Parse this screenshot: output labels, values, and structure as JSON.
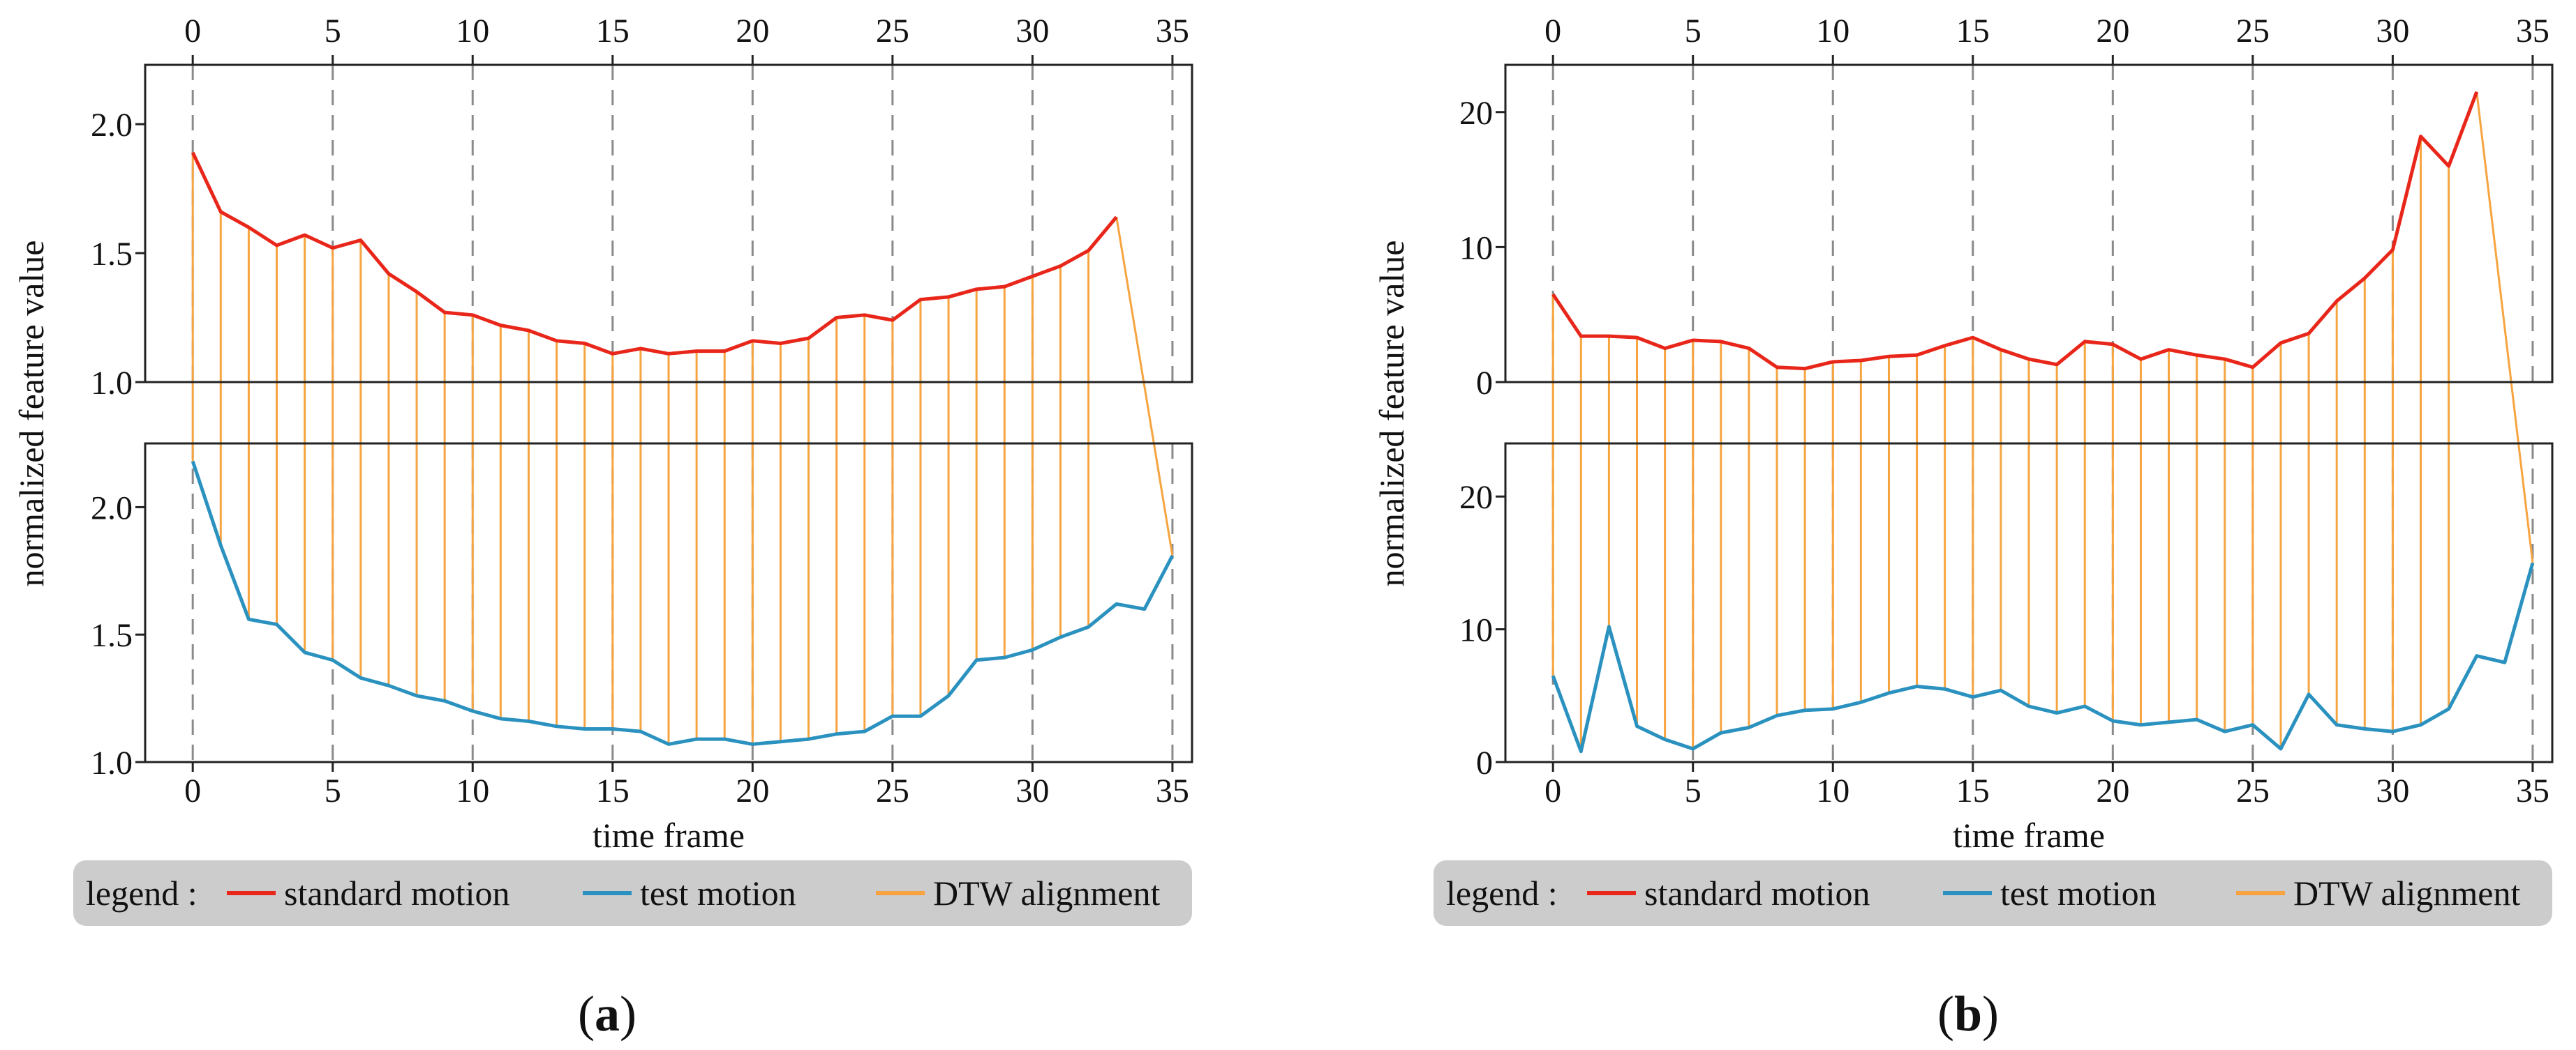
{
  "chart_data": [
    {
      "type": "line",
      "caption": "a",
      "xlabel": "time frame",
      "ylabel": "normalized feature value",
      "xticks": [
        0,
        5,
        10,
        15,
        20,
        25,
        30,
        35
      ],
      "xlim": [
        -1.7,
        35.7
      ],
      "top": {
        "ylim": [
          1.0,
          2.23
        ],
        "yticks": [
          1.0,
          1.5,
          2.0
        ],
        "tick_labels": [
          "1.0",
          "1.5",
          "2.0"
        ],
        "series_name": "standard motion",
        "x": [
          0,
          1,
          2,
          3,
          4,
          5,
          6,
          7,
          8,
          9,
          10,
          11,
          12,
          13,
          14,
          15,
          16,
          17,
          18,
          19,
          20,
          21,
          22,
          23,
          24,
          25,
          26,
          27,
          28,
          29,
          30,
          31,
          32,
          33
        ],
        "values": [
          1.89,
          1.66,
          1.6,
          1.53,
          1.57,
          1.52,
          1.55,
          1.42,
          1.35,
          1.27,
          1.26,
          1.22,
          1.2,
          1.16,
          1.15,
          1.11,
          1.13,
          1.11,
          1.12,
          1.12,
          1.16,
          1.15,
          1.17,
          1.25,
          1.26,
          1.24,
          1.32,
          1.33,
          1.36,
          1.37,
          1.41,
          1.45,
          1.51,
          1.64
        ]
      },
      "bottom": {
        "ylim": [
          1.0,
          2.25
        ],
        "yticks": [
          1.0,
          1.5,
          2.0
        ],
        "tick_labels": [
          "1.0",
          "1.5",
          "2.0"
        ],
        "series_name": "test motion",
        "x": [
          0,
          1,
          2,
          3,
          4,
          5,
          6,
          7,
          8,
          9,
          10,
          11,
          12,
          13,
          14,
          15,
          16,
          17,
          18,
          19,
          20,
          21,
          22,
          23,
          24,
          25,
          26,
          27,
          28,
          29,
          30,
          31,
          32,
          33,
          34,
          35
        ],
        "values": [
          2.18,
          1.85,
          1.56,
          1.54,
          1.43,
          1.4,
          1.33,
          1.3,
          1.26,
          1.24,
          1.2,
          1.17,
          1.16,
          1.14,
          1.13,
          1.13,
          1.12,
          1.07,
          1.09,
          1.09,
          1.07,
          1.08,
          1.09,
          1.11,
          1.12,
          1.18,
          1.18,
          1.26,
          1.4,
          1.41,
          1.44,
          1.49,
          1.53,
          1.62,
          1.6,
          1.81
        ]
      },
      "alignment": [
        [
          0,
          0
        ],
        [
          1,
          1
        ],
        [
          2,
          2
        ],
        [
          3,
          3
        ],
        [
          4,
          4
        ],
        [
          5,
          5
        ],
        [
          6,
          6
        ],
        [
          7,
          7
        ],
        [
          8,
          8
        ],
        [
          9,
          9
        ],
        [
          10,
          10
        ],
        [
          11,
          11
        ],
        [
          12,
          12
        ],
        [
          13,
          13
        ],
        [
          14,
          14
        ],
        [
          15,
          15
        ],
        [
          16,
          16
        ],
        [
          17,
          17
        ],
        [
          18,
          18
        ],
        [
          19,
          19
        ],
        [
          20,
          20
        ],
        [
          21,
          21
        ],
        [
          22,
          22
        ],
        [
          23,
          23
        ],
        [
          24,
          24
        ],
        [
          25,
          25
        ],
        [
          26,
          26
        ],
        [
          27,
          27
        ],
        [
          28,
          28
        ],
        [
          29,
          29
        ],
        [
          30,
          30
        ],
        [
          31,
          31
        ],
        [
          32,
          32
        ],
        [
          33,
          35
        ]
      ],
      "vlines": [
        0,
        5,
        10,
        15,
        20,
        25,
        30,
        35
      ]
    },
    {
      "type": "line",
      "caption": "b",
      "xlabel": "time frame",
      "ylabel": "normalized feature value",
      "xticks": [
        0,
        5,
        10,
        15,
        20,
        25,
        30,
        35
      ],
      "xlim": [
        -1.7,
        35.7
      ],
      "top": {
        "ylim": [
          0,
          23.5
        ],
        "yticks": [
          0,
          10,
          20
        ],
        "tick_labels": [
          "0",
          "10",
          "20"
        ],
        "series_name": "standard motion",
        "x": [
          0,
          1,
          2,
          3,
          4,
          5,
          6,
          7,
          8,
          9,
          10,
          11,
          12,
          13,
          14,
          15,
          16,
          17,
          18,
          19,
          20,
          21,
          22,
          23,
          24,
          25,
          26,
          27,
          28,
          29,
          30,
          31,
          32,
          33
        ],
        "values": [
          6.5,
          3.4,
          3.4,
          3.3,
          2.5,
          3.1,
          3.0,
          2.5,
          1.1,
          1.0,
          1.5,
          1.6,
          1.9,
          2.0,
          2.7,
          3.3,
          2.4,
          1.7,
          1.3,
          3.0,
          2.8,
          1.7,
          2.4,
          2.0,
          1.7,
          1.1,
          2.9,
          3.6,
          6.0,
          7.7,
          9.8,
          18.2,
          16.0,
          21.5
        ]
      },
      "bottom": {
        "ylim": [
          0,
          24
        ],
        "yticks": [
          0,
          10,
          20
        ],
        "tick_labels": [
          "0",
          "10",
          "20"
        ],
        "series_name": "test motion",
        "x": [
          0,
          1,
          2,
          3,
          4,
          5,
          6,
          7,
          8,
          9,
          10,
          11,
          12,
          13,
          14,
          15,
          16,
          17,
          18,
          19,
          20,
          21,
          22,
          23,
          24,
          25,
          26,
          27,
          28,
          29,
          30,
          31,
          32,
          33,
          34,
          35
        ],
        "values": [
          6.5,
          0.8,
          10.2,
          2.7,
          1.7,
          1.0,
          2.2,
          2.6,
          3.5,
          3.9,
          4.0,
          4.5,
          5.2,
          5.7,
          5.5,
          4.9,
          5.4,
          4.2,
          3.7,
          4.2,
          3.1,
          2.8,
          3.0,
          3.2,
          2.3,
          2.8,
          1.0,
          5.1,
          2.8,
          2.5,
          2.3,
          2.8,
          4.0,
          8.0,
          7.5,
          15.0
        ]
      },
      "alignment": [
        [
          0,
          0
        ],
        [
          1,
          1
        ],
        [
          2,
          2
        ],
        [
          3,
          3
        ],
        [
          4,
          4
        ],
        [
          5,
          5
        ],
        [
          6,
          6
        ],
        [
          7,
          7
        ],
        [
          8,
          8
        ],
        [
          9,
          9
        ],
        [
          10,
          10
        ],
        [
          11,
          11
        ],
        [
          12,
          12
        ],
        [
          13,
          13
        ],
        [
          14,
          14
        ],
        [
          15,
          15
        ],
        [
          16,
          16
        ],
        [
          17,
          17
        ],
        [
          18,
          18
        ],
        [
          19,
          19
        ],
        [
          20,
          20
        ],
        [
          21,
          21
        ],
        [
          22,
          22
        ],
        [
          23,
          23
        ],
        [
          24,
          24
        ],
        [
          25,
          25
        ],
        [
          26,
          26
        ],
        [
          27,
          27
        ],
        [
          28,
          28
        ],
        [
          29,
          29
        ],
        [
          30,
          30
        ],
        [
          31,
          31
        ],
        [
          32,
          32
        ],
        [
          33,
          35
        ]
      ],
      "vlines": [
        0,
        5,
        10,
        15,
        20,
        25,
        30,
        35
      ]
    }
  ],
  "legend": {
    "prefix": "legend :",
    "items": [
      {
        "label": "standard motion",
        "color": "#e8261a"
      },
      {
        "label": "test motion",
        "color": "#2b92c0"
      },
      {
        "label": "DTW alignment",
        "color": "#f7a440"
      }
    ]
  },
  "colors": {
    "standard": "#e8261a",
    "test": "#2b92c0",
    "alignment": "#f7a440",
    "vline": "#8a8a8a",
    "legend_bg": "#cccccc"
  }
}
